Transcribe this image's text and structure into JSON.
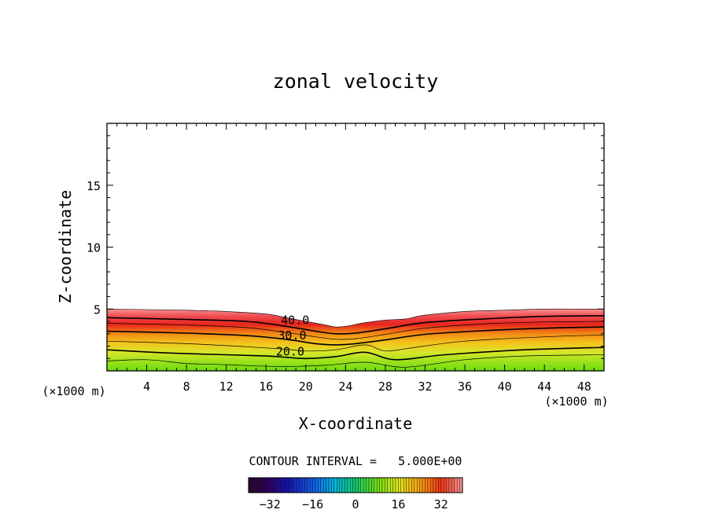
{
  "chart_data": {
    "type": "contour",
    "title": "zonal velocity",
    "xlabel": "X-coordinate",
    "ylabel": "Z-coordinate",
    "x_unit_label": "(×1000 m)",
    "z_unit_label": "(×1000 m)",
    "xlim": [
      0,
      50
    ],
    "ylim": [
      0,
      20
    ],
    "x_ticks": [
      4,
      8,
      12,
      16,
      20,
      24,
      28,
      32,
      36,
      40,
      44,
      48
    ],
    "y_ticks": [
      5,
      10,
      15
    ],
    "contour_interval_text": "CONTOUR INTERVAL =   5.000E+00",
    "contour_labels": [
      {
        "text": "40.0",
        "x": 17.5,
        "z": 4.1
      },
      {
        "text": "30.0",
        "x": 17.2,
        "z": 2.85
      },
      {
        "text": "20.0",
        "x": 17.0,
        "z": 1.55
      }
    ],
    "colorbar": {
      "min": -40,
      "max": 40,
      "ticks": [
        -32,
        -16,
        0,
        16,
        32
      ]
    },
    "field": {
      "top_boundary_x": [
        0,
        4,
        8,
        12,
        16,
        18,
        20,
        22,
        23,
        24,
        26,
        28,
        30,
        32,
        36,
        40,
        44,
        48,
        50
      ],
      "top_boundary_z": [
        5.0,
        4.95,
        4.9,
        4.8,
        4.6,
        4.3,
        4.0,
        3.7,
        3.55,
        3.6,
        3.9,
        4.1,
        4.2,
        4.5,
        4.8,
        4.9,
        5.0,
        5.0,
        5.0
      ],
      "contours": [
        {
          "level": 40,
          "x": [
            0,
            8,
            14,
            18,
            21,
            23,
            25,
            28,
            32,
            38,
            44,
            50
          ],
          "z": [
            4.3,
            4.15,
            4.0,
            3.6,
            3.2,
            3.0,
            3.05,
            3.4,
            3.9,
            4.2,
            4.4,
            4.45
          ]
        },
        {
          "level": 35,
          "x": [
            0,
            8,
            14,
            18,
            21,
            23,
            25,
            28,
            32,
            38,
            44,
            50
          ],
          "z": [
            3.85,
            3.7,
            3.5,
            3.1,
            2.75,
            2.55,
            2.6,
            2.95,
            3.45,
            3.8,
            3.95,
            4.0
          ]
        },
        {
          "level": 30,
          "x": [
            0,
            8,
            14,
            18,
            21,
            23,
            25,
            28,
            32,
            38,
            44,
            50
          ],
          "z": [
            3.2,
            3.05,
            2.85,
            2.55,
            2.2,
            2.1,
            2.2,
            2.5,
            2.95,
            3.25,
            3.45,
            3.55
          ]
        },
        {
          "level": 25,
          "x": [
            0,
            8,
            14,
            18,
            20,
            23,
            26,
            28,
            31,
            36,
            44,
            50
          ],
          "z": [
            2.4,
            2.2,
            1.95,
            1.75,
            1.6,
            1.7,
            2.1,
            1.6,
            1.9,
            2.4,
            2.75,
            2.9
          ]
        },
        {
          "level": 20,
          "x": [
            0,
            6,
            12,
            16,
            18,
            20,
            23,
            26,
            29,
            34,
            42,
            50
          ],
          "z": [
            1.7,
            1.45,
            1.3,
            1.2,
            1.1,
            1.0,
            1.15,
            1.5,
            0.9,
            1.3,
            1.7,
            1.9
          ]
        },
        {
          "level": 15,
          "x": [
            0,
            4,
            8,
            12,
            15,
            18,
            22,
            26,
            30,
            36,
            42,
            50
          ],
          "z": [
            0.8,
            0.9,
            0.6,
            0.5,
            0.4,
            0.35,
            0.45,
            0.7,
            0.3,
            0.9,
            1.2,
            1.3
          ]
        }
      ]
    }
  }
}
